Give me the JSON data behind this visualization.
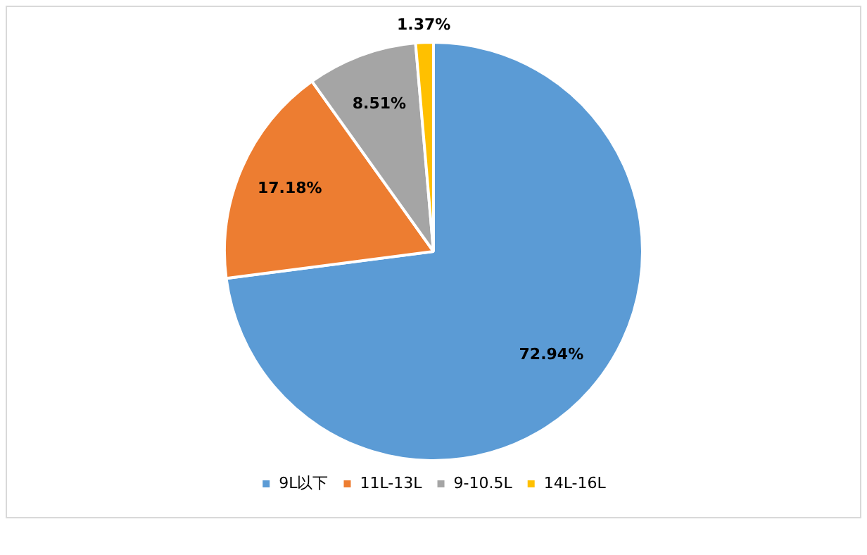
{
  "chart_data": {
    "type": "pie",
    "categories": [
      "9L以下",
      "11L-13L",
      "9-10.5L",
      "14L-16L"
    ],
    "values": [
      72.94,
      17.18,
      8.51,
      1.37
    ],
    "colors": [
      "#5b9bd5",
      "#ed7d31",
      "#a5a5a5",
      "#ffc000"
    ],
    "value_labels": [
      "72.94%",
      "17.18%",
      "8.51%",
      "1.37%"
    ],
    "legend": "bottom"
  }
}
